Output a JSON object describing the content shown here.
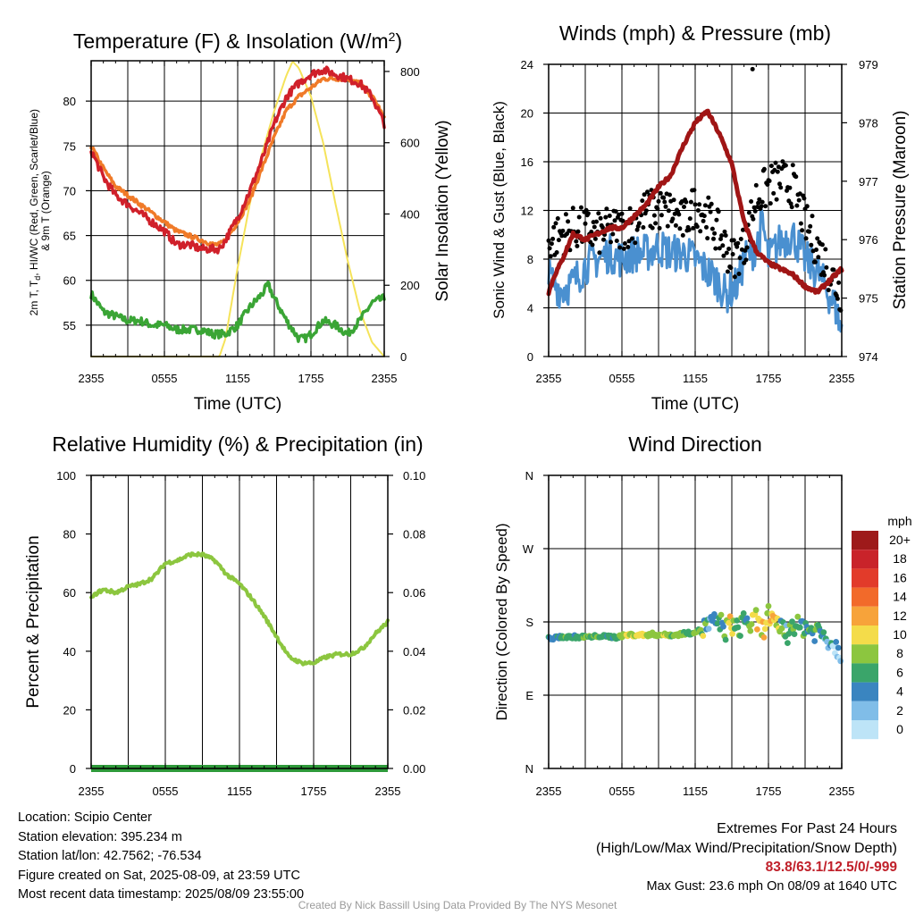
{
  "chart_data": [
    {
      "type": "line",
      "title": "Temperature (F) & Insolation (W/m²)",
      "xlabel": "Time (UTC)",
      "ylabel_lines": [
        "2m T, T",
        "d",
        ", HI/WC (Red, Green, Scarlet/Blue)",
        "& 9m T (Orange)"
      ],
      "y2label": "Solar Insolation (Yellow)",
      "x_ticks": [
        "2355",
        "0555",
        "1155",
        "1755",
        "2355"
      ],
      "y_ticks": [
        "55",
        "60",
        "65",
        "70",
        "75",
        "80"
      ],
      "y2_ticks": [
        "0",
        "200",
        "400",
        "600",
        "800"
      ],
      "ylim": [
        51.5,
        84.5
      ],
      "y2lim": [
        0,
        830
      ],
      "x_hours": [
        0,
        24
      ],
      "colors": {
        "red": "#d0202a",
        "orange": "#f07a28",
        "green": "#3aa535",
        "yellow": "#f5e35a"
      },
      "series": [
        {
          "axis": "left",
          "color": "#d0202a",
          "x": [
            0,
            1,
            2,
            3,
            4,
            5,
            6,
            7,
            8,
            9,
            10,
            10.5,
            11,
            12,
            13,
            14,
            15,
            16,
            17,
            18,
            19,
            20,
            21,
            22,
            23,
            23.5,
            24
          ],
          "y": [
            74.5,
            71.5,
            69.5,
            68.5,
            67.5,
            66.5,
            65.5,
            64,
            64,
            63.5,
            63.5,
            63.5,
            64.5,
            67,
            70,
            73.5,
            77.5,
            80.5,
            82,
            83,
            83.5,
            83,
            82.5,
            82,
            80.5,
            79,
            77.5
          ]
        },
        {
          "axis": "left",
          "color": "#f07a28",
          "x": [
            0,
            1,
            2,
            3,
            4,
            5,
            6,
            7,
            8,
            9,
            10,
            10.5,
            11,
            12,
            13,
            14,
            15,
            16,
            17,
            18,
            19,
            20,
            21,
            22,
            23,
            23.5,
            24
          ],
          "y": [
            75,
            72.5,
            70.5,
            69.5,
            68.5,
            67.5,
            66.5,
            65.5,
            65,
            64.5,
            64,
            64,
            64.5,
            66.5,
            69,
            72.5,
            76,
            79,
            80.5,
            81.5,
            82.5,
            82.5,
            82.5,
            82,
            80.5,
            79.5,
            78
          ]
        },
        {
          "axis": "left",
          "color": "#3aa535",
          "x": [
            0,
            1,
            2,
            3,
            4,
            5,
            6,
            7,
            8,
            9,
            10,
            10.5,
            11,
            12,
            13,
            14,
            14.5,
            15,
            16,
            17,
            17.5,
            18,
            19,
            20,
            21,
            22,
            23,
            24
          ],
          "y": [
            58.5,
            56.5,
            56,
            55.5,
            55.5,
            55,
            55,
            54.5,
            54.5,
            54.5,
            54,
            54,
            54,
            55,
            57,
            58.5,
            59.5,
            58,
            55.5,
            53.5,
            53.5,
            54,
            55.5,
            55,
            54,
            55.5,
            57.5,
            58
          ]
        },
        {
          "axis": "right",
          "color": "#f5e35a",
          "x": [
            0,
            10,
            10.5,
            11,
            12,
            13,
            14,
            15,
            16,
            16.5,
            17,
            18,
            19,
            20,
            21,
            22,
            23,
            24
          ],
          "y": [
            0,
            0,
            0,
            50,
            250,
            430,
            570,
            690,
            790,
            828,
            810,
            730,
            600,
            430,
            270,
            130,
            40,
            0
          ]
        }
      ]
    },
    {
      "type": "scatter",
      "title": "Winds (mph) & Pressure (mb)",
      "xlabel": "Time (UTC)",
      "ylabel": "Sonic Wind & Gust (Blue, Black)",
      "y2label": "Station Pressure (Maroon)",
      "x_ticks": [
        "2355",
        "0555",
        "1155",
        "1755",
        "2355"
      ],
      "y_ticks": [
        "0",
        "4",
        "8",
        "12",
        "16",
        "20",
        "24"
      ],
      "y2_ticks": [
        "974",
        "975",
        "976",
        "977",
        "978",
        "979"
      ],
      "ylim": [
        0,
        24
      ],
      "y2lim": [
        974,
        979
      ],
      "colors": {
        "wind": "#4a90d0",
        "gust": "#000000",
        "pressure": "#a01515"
      },
      "series": [
        {
          "name": "wind",
          "axis": "left",
          "x": [
            0,
            1,
            2,
            3,
            4,
            5,
            6,
            7,
            8,
            9,
            10,
            11,
            12,
            13,
            14,
            14.5,
            15,
            15.5,
            16,
            17,
            17.5,
            18,
            19,
            20,
            21,
            22,
            23,
            23.5,
            24
          ],
          "y": [
            6.5,
            5.5,
            6,
            7.5,
            8,
            8.5,
            8,
            8.5,
            8.5,
            9,
            8.5,
            8.5,
            8,
            7,
            6,
            5,
            5.5,
            6,
            8,
            9,
            11,
            8,
            9.5,
            10,
            8,
            7,
            5,
            4,
            2
          ]
        },
        {
          "name": "gust",
          "axis": "left",
          "x": [
            0,
            1,
            2,
            3,
            4,
            5,
            6,
            7,
            8,
            9,
            10,
            11,
            12,
            13,
            14,
            15,
            16,
            16.5,
            17,
            18,
            19,
            20,
            21,
            22,
            23,
            24
          ],
          "y": [
            9.5,
            10,
            10.5,
            10.5,
            10,
            10.5,
            10.5,
            11,
            12,
            12,
            12,
            11,
            12.5,
            11.5,
            10,
            8,
            9,
            11,
            13,
            14,
            14.5,
            14,
            11,
            9,
            7,
            5
          ]
        },
        {
          "name": "pressure",
          "axis": "right",
          "x": [
            0,
            0.5,
            1,
            2,
            3,
            4,
            5,
            6,
            7,
            8,
            9,
            10,
            11,
            12,
            13,
            14,
            15,
            16,
            17,
            18,
            19,
            20,
            21,
            22,
            23,
            23.5,
            24
          ],
          "y": [
            975.1,
            975.4,
            975.6,
            976.1,
            976.0,
            976.1,
            976.2,
            976.2,
            976.4,
            976.6,
            976.9,
            977.1,
            977.6,
            978.0,
            978.2,
            977.8,
            977.3,
            976.3,
            975.8,
            975.6,
            975.5,
            975.4,
            975.2,
            975.1,
            975.3,
            975.4,
            975.5
          ]
        },
        {
          "name": "max_gust",
          "axis": "left",
          "x": [
            16.7
          ],
          "y": [
            23.6
          ]
        }
      ]
    },
    {
      "type": "line",
      "title": "Relative Humidity (%) & Precipitation (in)",
      "ylabel": "Percent & Precipitation",
      "x_ticks": [
        "2355",
        "0555",
        "1155",
        "1755",
        "2355"
      ],
      "y_ticks": [
        "0",
        "20",
        "40",
        "60",
        "80",
        "100"
      ],
      "y2_ticks": [
        "0.00",
        "0.02",
        "0.04",
        "0.06",
        "0.08",
        "0.10"
      ],
      "ylim": [
        0,
        100
      ],
      "y2lim": [
        0,
        0.1
      ],
      "colors": {
        "rh": "#8cc63f",
        "precip": "#2e9a3a"
      },
      "series": [
        {
          "name": "rh",
          "x": [
            0,
            0.5,
            1,
            2,
            3,
            4,
            5,
            6,
            7,
            8,
            9,
            10,
            11,
            12,
            13,
            14,
            15,
            16,
            17,
            18,
            19,
            20,
            21,
            22,
            23,
            24
          ],
          "y": [
            58,
            60,
            61,
            60,
            62,
            63,
            65,
            70,
            71,
            73,
            73,
            71,
            66,
            63,
            58,
            52,
            45,
            38,
            36,
            36,
            38,
            39,
            39,
            41,
            46,
            50
          ]
        },
        {
          "name": "precip",
          "x": [
            0,
            24
          ],
          "y": [
            0,
            0
          ]
        }
      ]
    },
    {
      "type": "scatter",
      "title": "Wind Direction",
      "ylabel": "Direction (Colored By Speed)",
      "x_ticks": [
        "2355",
        "0555",
        "1155",
        "1755",
        "2355"
      ],
      "y_ticks": [
        "N",
        "E",
        "S",
        "W",
        "N"
      ],
      "colorbar_title": "mph",
      "colorbar_labels": [
        "20+",
        "18",
        "16",
        "14",
        "12",
        "10",
        "8",
        "6",
        "4",
        "2",
        "0"
      ],
      "colorbar_colors": [
        "#9e1a1a",
        "#c9232a",
        "#e23b2a",
        "#f26a2a",
        "#f7a33a",
        "#f4dc4a",
        "#8cc63f",
        "#3aa56a",
        "#3a85c0",
        "#80bde8",
        "#bde4f7"
      ],
      "points": {
        "x": [
          0,
          0.5,
          1,
          1.5,
          2,
          2.5,
          3,
          3.5,
          4,
          4.5,
          5,
          5.5,
          6,
          6.5,
          7,
          7.5,
          8,
          8.5,
          9,
          9.5,
          10,
          10.5,
          11,
          11.5,
          12,
          12.5,
          13,
          13.5,
          14,
          14.5,
          15,
          15.5,
          16,
          16.5,
          17,
          17.5,
          18,
          18.5,
          19,
          19.5,
          20,
          20.5,
          21,
          21.5,
          22,
          22.5,
          23,
          23.5,
          24
        ],
        "y": [
          160,
          160,
          162,
          161,
          162,
          161,
          162,
          161,
          163,
          162,
          162,
          161,
          163,
          164,
          164,
          164,
          164,
          165,
          164,
          164,
          164,
          164,
          166,
          166,
          168,
          170,
          175,
          178,
          180,
          170,
          178,
          168,
          186,
          176,
          182,
          168,
          190,
          172,
          178,
          164,
          180,
          172,
          176,
          168,
          170,
          164,
          158,
          150,
          142
        ],
        "mph": [
          6,
          5,
          7,
          8,
          7,
          6,
          8,
          7,
          8,
          7,
          6,
          7,
          9,
          10,
          10,
          11,
          10,
          9,
          9,
          10,
          8,
          9,
          8,
          7,
          8,
          9,
          6,
          4,
          6,
          8,
          11,
          7,
          5,
          9,
          12,
          10,
          10,
          13,
          7,
          6,
          9,
          8,
          6,
          7,
          8,
          5,
          4,
          3,
          2
        ]
      }
    }
  ],
  "info": {
    "location": "Location: Scipio Center",
    "elevation": "Station elevation: 395.234 m",
    "latlon": "Station lat/lon: 42.7562; -76.534",
    "created": "Figure created on Sat, 2025-08-09, at 23:59 UTC",
    "recent": "Most recent data timestamp: 2025/08/09 23:55:00",
    "extremes_title": "Extremes For Past 24 Hours",
    "extremes_sub": "(High/Low/Max Wind/Precipitation/Snow Depth)",
    "extremes_values": "83.8/63.1/12.5/0/-999",
    "max_gust": "Max Gust: 23.6 mph On 08/09 at 1640 UTC",
    "credit": "Created By Nick Bassill Using Data Provided By The NYS Mesonet"
  }
}
